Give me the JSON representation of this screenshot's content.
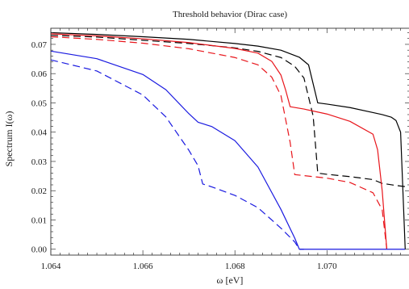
{
  "chart_data": {
    "type": "line",
    "title": "Threshold behavior (Dirac case)",
    "xlabel": "ω [eV]",
    "ylabel": "Spectrum I(ω)",
    "xlim": [
      1.064,
      1.0718
    ],
    "ylim": [
      -0.002,
      0.0755
    ],
    "x_ticks": [
      1.064,
      1.066,
      1.068,
      1.07
    ],
    "x_tick_labels": [
      "1.064",
      "1.066",
      "1.068",
      "1.070"
    ],
    "y_ticks": [
      0,
      0.01,
      0.02,
      0.03,
      0.04,
      0.05,
      0.06,
      0.07
    ],
    "y_tick_labels": [
      "0.00",
      "0.01",
      "0.02",
      "0.03",
      "0.04",
      "0.05",
      "0.06",
      "0.07"
    ],
    "grid": false,
    "legend": "none",
    "series": [
      {
        "color": "#000000",
        "dash": "solid",
        "x": [
          1.064,
          1.065,
          1.066,
          1.067,
          1.068,
          1.0685,
          1.069,
          1.0694,
          1.0696,
          1.0698,
          1.07,
          1.0705,
          1.071,
          1.0712,
          1.0714,
          1.0715,
          1.0716,
          1.0717
        ],
        "y": [
          0.074,
          0.0734,
          0.0726,
          0.0717,
          0.0703,
          0.0694,
          0.068,
          0.0656,
          0.063,
          0.05,
          0.0496,
          0.0484,
          0.0467,
          0.046,
          0.0451,
          0.044,
          0.04,
          0.0
        ]
      },
      {
        "color": "#000000",
        "dash": "long",
        "x": [
          1.064,
          1.065,
          1.066,
          1.067,
          1.068,
          1.0685,
          1.069,
          1.0693,
          1.0695,
          1.0697,
          1.0698,
          1.07,
          1.0705,
          1.071,
          1.0712,
          1.0715,
          1.0717
        ],
        "y": [
          0.0731,
          0.0725,
          0.0714,
          0.0703,
          0.0688,
          0.0676,
          0.0655,
          0.0625,
          0.0585,
          0.0455,
          0.026,
          0.0256,
          0.0248,
          0.0238,
          0.0225,
          0.0218,
          0.0214
        ]
      },
      {
        "color": "#e8151b",
        "dash": "solid",
        "x": [
          1.064,
          1.065,
          1.066,
          1.067,
          1.068,
          1.0685,
          1.0688,
          1.069,
          1.0691,
          1.0692,
          1.0695,
          1.07,
          1.0705,
          1.071,
          1.0711,
          1.0712,
          1.0713
        ],
        "y": [
          0.0736,
          0.0729,
          0.0719,
          0.0706,
          0.0686,
          0.067,
          0.0642,
          0.0595,
          0.0545,
          0.0487,
          0.0479,
          0.0462,
          0.0437,
          0.0393,
          0.034,
          0.02,
          0.0
        ]
      },
      {
        "color": "#e8151b",
        "dash": "long",
        "x": [
          1.064,
          1.065,
          1.066,
          1.067,
          1.068,
          1.0685,
          1.0688,
          1.069,
          1.0692,
          1.0693,
          1.07,
          1.0705,
          1.071,
          1.0712,
          1.0713
        ],
        "y": [
          0.0726,
          0.0717,
          0.0704,
          0.0685,
          0.0655,
          0.063,
          0.0588,
          0.0525,
          0.0365,
          0.0255,
          0.0243,
          0.0228,
          0.0193,
          0.0135,
          0.0
        ]
      },
      {
        "color": "#1a1ae0",
        "dash": "solid",
        "x": [
          1.064,
          1.065,
          1.066,
          1.0665,
          1.067,
          1.0672,
          1.0675,
          1.068,
          1.0685,
          1.069,
          1.0693,
          1.0694,
          1.0697,
          1.07,
          1.0705,
          1.071,
          1.0715,
          1.0717
        ],
        "y": [
          0.0677,
          0.0651,
          0.0597,
          0.0545,
          0.0463,
          0.0434,
          0.0419,
          0.0371,
          0.0281,
          0.0136,
          0.0038,
          0.0,
          0.0,
          0.0,
          0.0,
          0.0,
          0.0,
          0.0
        ]
      },
      {
        "color": "#1a1ae0",
        "dash": "long",
        "x": [
          1.064,
          1.065,
          1.066,
          1.0665,
          1.067,
          1.0672,
          1.0673,
          1.0675,
          1.068,
          1.0685,
          1.069,
          1.0693,
          1.0694,
          1.0695
        ],
        "y": [
          0.0647,
          0.0609,
          0.0527,
          0.0452,
          0.0338,
          0.0285,
          0.0223,
          0.0213,
          0.0184,
          0.0142,
          0.0072,
          0.0025,
          0.0,
          0.0
        ]
      }
    ]
  }
}
